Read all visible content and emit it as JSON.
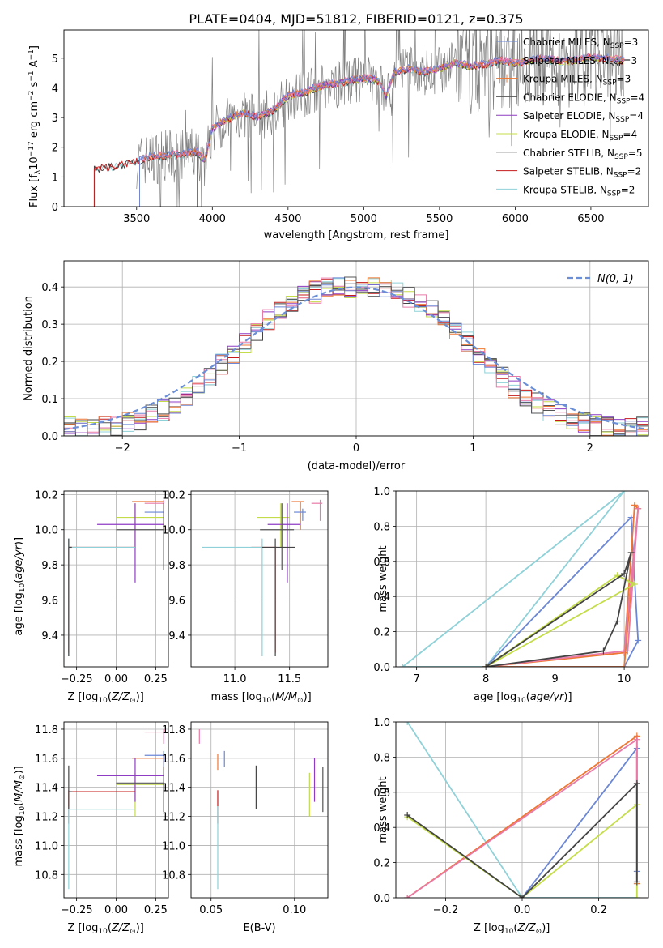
{
  "figure": {
    "title": "PLATE=0404, MJD=51812, FIBERID=0121, z=0.375"
  },
  "colors": {
    "chabrier_miles": "#6b87d6",
    "salpeter_miles": "#e87aa8",
    "kroupa_miles": "#ee7733",
    "chabrier_elodie": "#555555",
    "salpeter_elodie": "#8f3cc4",
    "kroupa_elodie": "#c5dc4a",
    "chabrier_stelib": "#444444",
    "salpeter_stelib": "#c41a1a",
    "kroupa_stelib": "#8fd1d8",
    "normal": "#6b8fd6",
    "spectrum": "#808080",
    "grid": "#b0b0b0"
  },
  "chart_data": [
    {
      "type": "line",
      "id": "spectrum",
      "xlabel": "wavelength [Angstrom, rest frame]",
      "ylabel": "Flux [f",
      "xlim": [
        3020,
        6880
      ],
      "ylim": [
        0,
        5.95
      ],
      "xticks": [
        3500,
        4000,
        4500,
        5000,
        5500,
        6000,
        6500
      ],
      "yticks": [
        0,
        1,
        2,
        3,
        4,
        5
      ],
      "legend_position": "top-right",
      "legend": [
        {
          "label": "Chabrier MILES, N",
          "n": 3,
          "color": "chabrier_miles",
          "marker": "none"
        },
        {
          "label": "Salpeter MILES, N",
          "n": 3,
          "color": "salpeter_miles",
          "marker": "none"
        },
        {
          "label": "Kroupa MILES, N",
          "n": 3,
          "color": "kroupa_miles",
          "marker": "plus"
        },
        {
          "label": "Chabrier ELODIE, N",
          "n": 4,
          "color": "chabrier_elodie",
          "marker": "none"
        },
        {
          "label": "Salpeter ELODIE, N",
          "n": 4,
          "color": "salpeter_elodie",
          "marker": "none"
        },
        {
          "label": "Kroupa ELODIE, N",
          "n": 4,
          "color": "kroupa_elodie",
          "marker": "none"
        },
        {
          "label": "Chabrier STELIB, N",
          "n": 5,
          "color": "chabrier_stelib",
          "marker": "none"
        },
        {
          "label": "Salpeter STELIB, N",
          "n": 2,
          "color": "salpeter_stelib",
          "marker": "none"
        },
        {
          "label": "Kroupa STELIB, N",
          "n": 2,
          "color": "kroupa_stelib",
          "marker": "none"
        }
      ],
      "model_continuum": {
        "x": [
          3220,
          3300,
          3400,
          3500,
          3600,
          3700,
          3800,
          3900,
          3950,
          4000,
          4100,
          4200,
          4300,
          4400,
          4500,
          4600,
          4700,
          4800,
          4900,
          5000,
          5100,
          5150,
          5200,
          5300,
          5400,
          5500,
          5600,
          5700,
          5800,
          5900,
          6000,
          6100,
          6200,
          6300,
          6400,
          6500,
          6600,
          6700
        ],
        "y": [
          1.25,
          1.3,
          1.38,
          1.5,
          1.65,
          1.7,
          1.72,
          1.8,
          1.5,
          2.6,
          2.9,
          3.1,
          3.0,
          3.2,
          3.7,
          3.8,
          4.0,
          4.1,
          4.2,
          4.3,
          4.2,
          3.7,
          4.5,
          4.6,
          4.5,
          4.6,
          4.8,
          4.7,
          4.75,
          4.9,
          4.8,
          4.9,
          4.95,
          4.85,
          4.9,
          5.0,
          4.95,
          4.9
        ]
      },
      "observed_noise_start": 3500
    },
    {
      "type": "line",
      "id": "residuals",
      "xlabel": "(data-model)/error",
      "ylabel": "Normed distribution",
      "xlim": [
        -2.5,
        2.5
      ],
      "ylim": [
        0,
        0.47
      ],
      "xticks": [
        -2,
        -1,
        0,
        1,
        2
      ],
      "yticks": [
        0.0,
        0.1,
        0.2,
        0.3,
        0.4
      ],
      "legend_position": "top-right",
      "legend": [
        {
          "label": "N(0, 1)",
          "style": "dashed",
          "color": "normal"
        }
      ],
      "bin_width": 0.1
    },
    {
      "type": "scatter",
      "id": "age_vs_Z",
      "xlabel": "Z [log",
      "ylabel": "age  [log",
      "xlim": [
        -0.33,
        0.33
      ],
      "ylim": [
        9.22,
        10.22
      ],
      "xticks": [
        -0.25,
        0.0,
        0.25
      ],
      "yticks": [
        9.4,
        9.6,
        9.8,
        10.0,
        10.2
      ]
    },
    {
      "type": "scatter",
      "id": "age_vs_mass",
      "xlabel": "mass [log",
      "ylabel": "",
      "xlim": [
        10.6,
        11.85
      ],
      "ylim": [
        9.22,
        10.22
      ],
      "xticks": [
        11.0,
        11.5
      ],
      "yticks": [
        9.4,
        9.6,
        9.8,
        10.0,
        10.2
      ]
    },
    {
      "type": "line",
      "id": "weight_vs_age",
      "xlabel": "age  [log",
      "ylabel": "mass weight",
      "xlim": [
        6.7,
        10.35
      ],
      "ylim": [
        0,
        1.0
      ],
      "xticks": [
        7,
        8,
        9,
        10
      ],
      "yticks": [
        0.0,
        0.2,
        0.4,
        0.6,
        0.8,
        1.0
      ],
      "series": [
        {
          "color": "kroupa_stelib",
          "x": [
            6.8,
            8.0,
            10.0,
            6.8
          ],
          "y": [
            0.0,
            0.0,
            1.0,
            0.0
          ]
        },
        {
          "color": "chabrier_miles",
          "x": [
            8.0,
            10.1,
            10.2,
            10.0,
            8.0
          ],
          "y": [
            0.0,
            0.85,
            0.15,
            0.0,
            0.0
          ]
        },
        {
          "color": "kroupa_miles",
          "x": [
            8.0,
            10.0,
            10.15,
            10.2,
            10.0,
            8.0
          ],
          "y": [
            0.0,
            0.08,
            0.92,
            0.9,
            0.0,
            0.0
          ]
        },
        {
          "color": "salpeter_miles",
          "x": [
            8.0,
            10.0,
            10.2,
            10.05
          ],
          "y": [
            0.0,
            0.09,
            0.9,
            0.09
          ]
        },
        {
          "color": "kroupa_elodie",
          "x": [
            8.0,
            9.9,
            10.1,
            10.15,
            8.0
          ],
          "y": [
            0.0,
            0.52,
            0.48,
            0.47,
            0.0
          ]
        },
        {
          "color": "chabrier_stelib",
          "x": [
            8.0,
            9.7,
            9.9,
            10.1,
            10.0,
            8.0
          ],
          "y": [
            0.0,
            0.09,
            0.26,
            0.65,
            0.53,
            0.0
          ]
        }
      ]
    },
    {
      "type": "scatter",
      "id": "mass_vs_Z",
      "xlabel": "Z [log",
      "ylabel": "mass [log",
      "xlim": [
        -0.33,
        0.33
      ],
      "ylim": [
        10.64,
        11.85
      ],
      "xticks": [
        -0.25,
        0.0,
        0.25
      ],
      "yticks": [
        10.8,
        11.0,
        11.2,
        11.4,
        11.6,
        11.8
      ]
    },
    {
      "type": "scatter",
      "id": "mass_vs_ebv",
      "xlabel": "E(B-V)",
      "ylabel": "",
      "xlim": [
        0.038,
        0.12
      ],
      "ylim": [
        10.64,
        11.85
      ],
      "xticks": [
        0.05,
        0.1
      ],
      "yticks": [
        10.8,
        11.0,
        11.2,
        11.4,
        11.6,
        11.8
      ]
    },
    {
      "type": "line",
      "id": "weight_vs_Z",
      "xlabel": "Z [log",
      "ylabel": "mass weight",
      "xlim": [
        -0.33,
        0.33
      ],
      "ylim": [
        0,
        1.0
      ],
      "xticks": [
        -0.2,
        0.0,
        0.2
      ],
      "yticks": [
        0.0,
        0.2,
        0.4,
        0.6,
        0.8,
        1.0
      ],
      "series": [
        {
          "color": "kroupa_stelib",
          "x": [
            -0.3,
            0.0,
            0.3
          ],
          "y": [
            1.0,
            0.0,
            0.0
          ]
        },
        {
          "color": "chabrier_miles",
          "x": [
            0.0,
            0.3,
            0.3
          ],
          "y": [
            0.0,
            0.85,
            0.15
          ]
        },
        {
          "color": "kroupa_miles",
          "x": [
            -0.3,
            0.3,
            0.3
          ],
          "y": [
            0.0,
            0.92,
            0.08
          ]
        },
        {
          "color": "salpeter_miles",
          "x": [
            -0.3,
            0.3,
            0.3
          ],
          "y": [
            0.0,
            0.9,
            0.09
          ]
        },
        {
          "color": "kroupa_elodie",
          "x": [
            -0.3,
            0.0,
            0.3,
            0.3
          ],
          "y": [
            0.46,
            0.0,
            0.53,
            0.0
          ]
        },
        {
          "color": "chabrier_stelib",
          "x": [
            -0.3,
            0.0,
            0.3,
            0.3
          ],
          "y": [
            0.47,
            0.0,
            0.65,
            0.09
          ]
        }
      ]
    }
  ],
  "ssp_points": [
    {
      "color": "kroupa_miles",
      "Z": 0.3,
      "Zerr": [
        0.1,
        0.3
      ],
      "age": 10.16,
      "ageerr": [
        10.0,
        10.16
      ],
      "mass": 11.6,
      "masserr": [
        11.52,
        11.63
      ],
      "ebv": 0.054
    },
    {
      "color": "salpeter_miles",
      "Z": 0.3,
      "Zerr": [
        0.18,
        0.3
      ],
      "age": 10.15,
      "ageerr": [
        10.05,
        10.17
      ],
      "mass": 11.78,
      "masserr": [
        11.7,
        11.8
      ],
      "ebv": 0.043
    },
    {
      "color": "chabrier_miles",
      "Z": 0.3,
      "Zerr": [
        0.18,
        0.3
      ],
      "age": 10.1,
      "ageerr": [
        10.05,
        10.12
      ],
      "mass": 11.62,
      "masserr": [
        11.54,
        11.65
      ],
      "ebv": 0.058
    },
    {
      "color": "kroupa_elodie",
      "Z": 0.12,
      "Zerr": [
        0.0,
        0.3
      ],
      "age": 10.07,
      "ageerr": [
        9.9,
        10.15
      ],
      "mass": 11.42,
      "masserr": [
        11.2,
        11.5
      ],
      "ebv": 0.109
    },
    {
      "color": "salpeter_elodie",
      "Z": 0.12,
      "Zerr": [
        -0.12,
        0.3
      ],
      "age": 10.03,
      "ageerr": [
        9.7,
        10.15
      ],
      "mass": 11.48,
      "masserr": [
        11.3,
        11.6
      ],
      "ebv": 0.112
    },
    {
      "color": "chabrier_elodie",
      "Z": 0.3,
      "Zerr": [
        0.0,
        0.3
      ],
      "age": 10.0,
      "ageerr": [
        9.77,
        10.15
      ],
      "mass": 11.43,
      "masserr": [
        11.23,
        11.54
      ],
      "ebv": 0.117
    },
    {
      "color": "salpeter_stelib",
      "Z": -0.3,
      "Zerr": [
        -0.3,
        0.12
      ],
      "age": 9.9,
      "ageerr": [
        9.3,
        9.9
      ],
      "mass": 11.37,
      "masserr": [
        11.15,
        11.38
      ],
      "ebv": 0.054
    },
    {
      "color": "kroupa_stelib",
      "Z": -0.3,
      "Zerr": [
        -0.3,
        0.12
      ],
      "age": 9.9,
      "ageerr": [
        9.28,
        9.95
      ],
      "mass": 11.25,
      "masserr": [
        10.7,
        11.27
      ],
      "ebv": 0.054
    },
    {
      "color": "chabrier_stelib",
      "Z": -0.3,
      "Zerr": [
        -0.3,
        -0.28
      ],
      "age": 9.9,
      "ageerr": [
        9.28,
        9.95
      ],
      "mass": 11.37,
      "masserr": [
        11.25,
        11.55
      ],
      "ebv": 0.077
    }
  ]
}
